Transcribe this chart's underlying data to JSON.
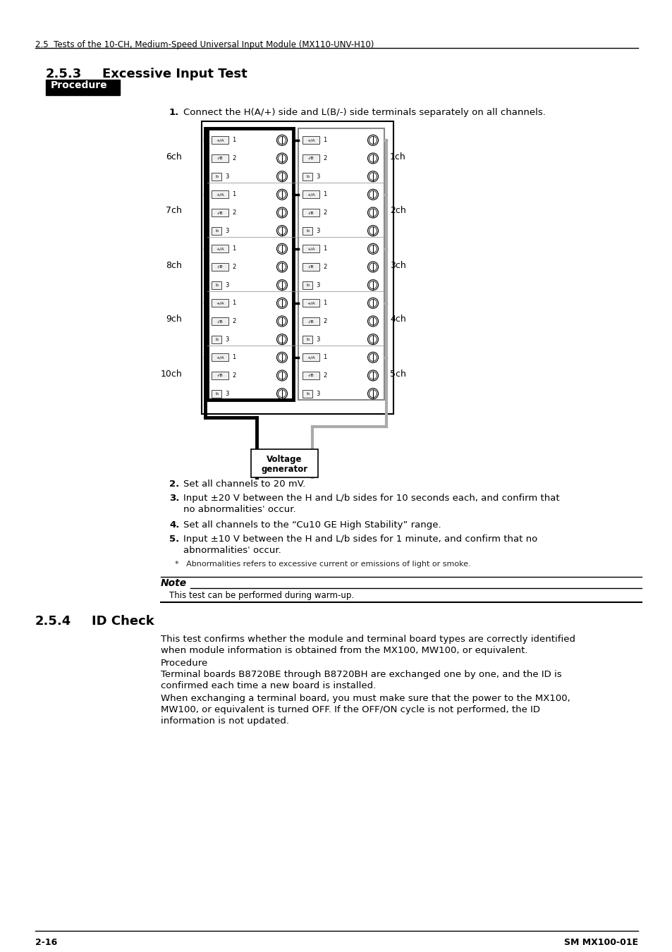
{
  "header_text": "2.5  Tests of the 10-CH, Medium-Speed Universal Input Module (MX110-UNV-H10)",
  "section_title": "2.5.3",
  "section_title2": "Excessive Input Test",
  "procedure_label": "Procedure",
  "step1_num": "1.",
  "step1_text": "Connect the H(A/+) side and L(B/-) side terminals separately on all channels.",
  "left_channels": [
    "6ch",
    "7ch",
    "8ch",
    "9ch",
    "10ch"
  ],
  "right_channels": [
    "1ch",
    "2ch",
    "3ch",
    "4ch",
    "5ch"
  ],
  "step2_num": "2.",
  "step2_text": "Set all channels to 20 mV.",
  "step3_num": "3.",
  "step3_line1": "Input ±20 V between the H and L/b sides for 10 seconds each, and confirm that",
  "step3_line2": "no abnormalitiesˈ occur.",
  "step4_num": "4.",
  "step4_text": "Set all channels to the “Cu10 GE High Stability” range.",
  "step5_num": "5.",
  "step5_line1": "Input ±10 V between the H and L/b sides for 1 minute, and confirm that no",
  "step5_line2": "abnormalitiesˈ occur.",
  "footnote": "*   Abnormalities refers to excessive current or emissions of light or smoke.",
  "note_label": "Note",
  "note_text": "This test can be performed during warm-up.",
  "section2_num": "2.5.4",
  "section2_title": "ID Check",
  "id_para1_line1": "This test confirms whether the module and terminal board types are correctly identified",
  "id_para1_line2": "when module information is obtained from the MX100, MW100, or equivalent.",
  "id_proc_label": "Procedure",
  "id_para2_line1": "Terminal boards B8720BE through B8720BH are exchanged one by one, and the ID is",
  "id_para2_line2": "confirmed each time a new board is installed.",
  "id_para3_line1": "When exchanging a terminal board, you must make sure that the power to the MX100,",
  "id_para3_line2": "MW100, or equivalent is turned OFF. If the OFF/ON cycle is not performed, the ID",
  "id_para3_line3": "information is not updated.",
  "footer_left": "2-16",
  "footer_right": "SM MX100-01E",
  "bg_color": "#ffffff"
}
